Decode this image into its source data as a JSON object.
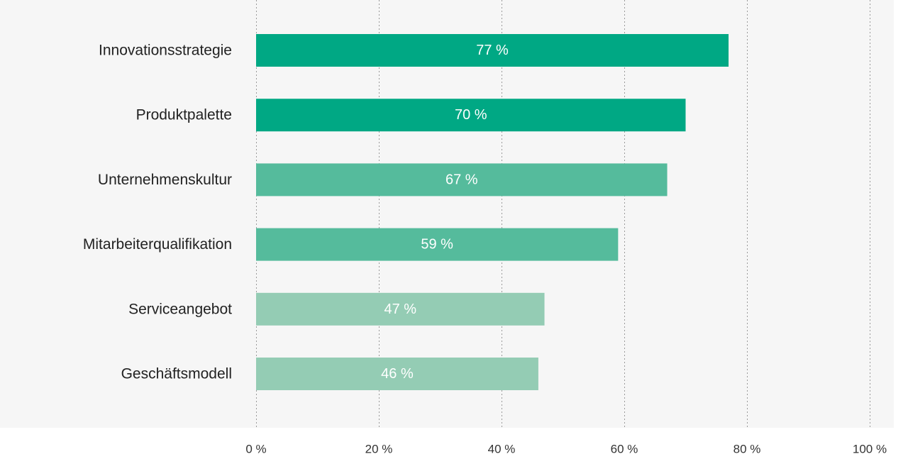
{
  "chart_data": {
    "type": "bar",
    "orientation": "horizontal",
    "categories": [
      "Innovationsstrategie",
      "Produktpalette",
      "Unternehmenskultur",
      "Mitarbeiterqualifikation",
      "Serviceangebot",
      "Geschäftsmodell"
    ],
    "values": [
      77,
      70,
      67,
      59,
      47,
      46
    ],
    "value_labels": [
      "77 %",
      "70 %",
      "67 %",
      "59 %",
      "47 %",
      "46 %"
    ],
    "bar_colors": [
      "#00a884",
      "#00a884",
      "#55bb9c",
      "#55bb9c",
      "#94ccb4",
      "#94ccb4"
    ],
    "xlim": [
      0,
      100
    ],
    "xticks": [
      0,
      20,
      40,
      60,
      80,
      100
    ],
    "xtick_labels": [
      "0 %",
      "20 %",
      "40 %",
      "60 %",
      "80 %",
      "100 %"
    ],
    "grid": "vertical-dotted",
    "legend": "none",
    "title": "",
    "xlabel": "",
    "ylabel": ""
  },
  "colors": {
    "plot_background": "#f6f6f6",
    "page_background": "#ffffff",
    "grid": "#9a9a9a",
    "category_text": "#222222",
    "value_text": "#ffffff",
    "tick_text": "#333333"
  }
}
